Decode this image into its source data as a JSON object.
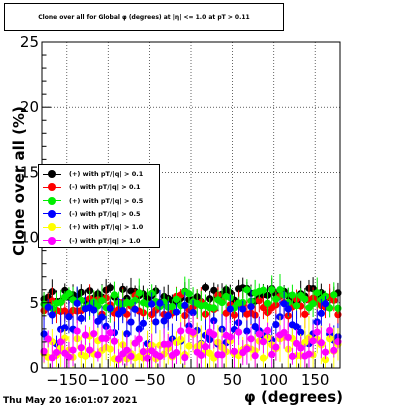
{
  "title": "Clone  over all for Global φ (degrees) at |η| <= 1.0 at pT > 0.11",
  "timestamp": "Thu May 20 16:01:07 2021",
  "colors": {
    "frame": "#000000",
    "grid": "#000000",
    "background": "#ffffff"
  },
  "chart_data": {
    "type": "scatter",
    "title": "Clone  over all for Global φ (degrees) at |η| <= 1.0 at pT > 0.11",
    "xlabel": "φ (degrees)",
    "ylabel": "Clone  over all (%)",
    "xlim": [
      -180,
      180
    ],
    "ylim": [
      0,
      25
    ],
    "grid": true,
    "legend_placement": "middle-left",
    "x_ticks": [
      -150,
      -100,
      -50,
      0,
      50,
      100,
      150
    ],
    "x_tick_labels": [
      "−150",
      "−100",
      "−50",
      "0",
      "50",
      "100",
      "150"
    ],
    "y_ticks": [
      0,
      5,
      10,
      15,
      20,
      25
    ],
    "y_tick_labels": [
      "0",
      "5",
      "10",
      "15",
      "20",
      "25"
    ],
    "bins": 72,
    "series": [
      {
        "name": "(+) with pT/|q| > 0.1",
        "color": "#000000",
        "level": 5.6,
        "spread": 0.6,
        "err": 0.7,
        "seed": 11
      },
      {
        "name": "(-) with pT/|q| > 0.1",
        "color": "#ff0000",
        "level": 4.8,
        "spread": 0.8,
        "err": 0.8,
        "seed": 23
      },
      {
        "name": "(+) with pT/|q| > 0.5",
        "color": "#00ee00",
        "level": 5.3,
        "spread": 0.8,
        "err": 0.8,
        "seed": 37
      },
      {
        "name": "(-) with pT/|q| > 0.5",
        "color": "#0000ff",
        "level": 3.4,
        "spread": 1.6,
        "err": 0.9,
        "seed": 41
      },
      {
        "name": "(+) with pT/|q| > 1.0",
        "color": "#ffff00",
        "level": 1.6,
        "spread": 1.0,
        "err": 1.3,
        "seed": 53
      },
      {
        "name": "(-) with pT/|q| > 1.0",
        "color": "#ff00ff",
        "level": 1.8,
        "spread": 1.1,
        "err": 1.0,
        "seed": 67
      }
    ]
  }
}
